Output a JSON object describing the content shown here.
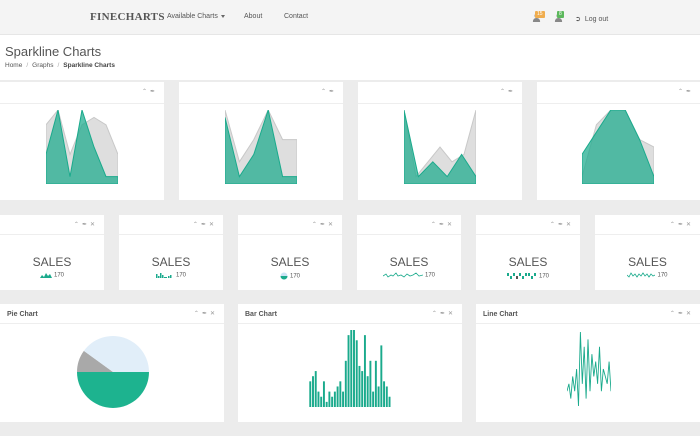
{
  "navbar": {
    "brand": "FINECHARTS",
    "links": [
      {
        "label": "Available Charts"
      },
      {
        "label": "About"
      },
      {
        "label": "Contact"
      }
    ],
    "badges": [
      {
        "value": "15",
        "color": "#f0ad4e"
      },
      {
        "value": "8",
        "color": "#5cb85c"
      }
    ],
    "logout": "Log out"
  },
  "header": {
    "title": "Sparkline Charts",
    "breadcrumb": [
      "Home",
      "Graphs",
      "Sparkline Charts"
    ]
  },
  "sales_widgets": [
    {
      "label": "SALES",
      "value": "170"
    },
    {
      "label": "SALES",
      "value": "170"
    },
    {
      "label": "SALES",
      "value": "170"
    },
    {
      "label": "SALES",
      "value": "170"
    },
    {
      "label": "SALES",
      "value": "170"
    },
    {
      "label": "SALES",
      "value": "170"
    }
  ],
  "panels": {
    "pie": {
      "title": "Pie Chart"
    },
    "bar": {
      "title": "Bar Chart"
    },
    "line": {
      "title": "Line Chart"
    }
  },
  "colors": {
    "teal": "#1aaa8c",
    "grey": "#d8d8d8"
  },
  "chart_data": [
    {
      "type": "area",
      "series": [
        {
          "values": [
            8,
            10,
            4,
            8,
            9,
            8,
            4
          ]
        },
        {
          "values": [
            4,
            10,
            1,
            10,
            5,
            1,
            1
          ]
        }
      ]
    },
    {
      "type": "area",
      "series": [
        {
          "values": [
            10,
            3,
            6,
            10,
            6,
            6
          ]
        },
        {
          "values": [
            9,
            1,
            4,
            10,
            1,
            1
          ]
        }
      ]
    },
    {
      "type": "area",
      "series": [
        {
          "values": [
            10,
            1,
            3,
            5,
            3,
            4,
            10
          ]
        },
        {
          "values": [
            10,
            1,
            3,
            1,
            4,
            1
          ]
        }
      ]
    },
    {
      "type": "area",
      "series": [
        {
          "values": [
            1,
            8,
            10,
            10,
            6,
            5
          ]
        },
        {
          "values": [
            4,
            7,
            10,
            10,
            6,
            1
          ]
        }
      ]
    },
    {
      "type": "pie",
      "values": [
        50,
        10,
        40
      ],
      "colors": [
        "#1db38f",
        "#a9a9a9",
        "#e1eef9"
      ]
    },
    {
      "type": "bar",
      "values": [
        5,
        6,
        7,
        3,
        2,
        5,
        1,
        3,
        2,
        3,
        4,
        5,
        3,
        9,
        14,
        15,
        15,
        13,
        8,
        7,
        14,
        6,
        9,
        3,
        9,
        4,
        12,
        5,
        4,
        2
      ]
    },
    {
      "type": "line",
      "values": [
        2,
        3,
        1,
        4,
        2,
        5,
        0,
        10,
        3,
        8,
        1,
        9,
        2,
        7,
        4,
        6,
        3,
        8,
        2,
        5,
        4,
        3,
        6,
        2
      ]
    }
  ]
}
